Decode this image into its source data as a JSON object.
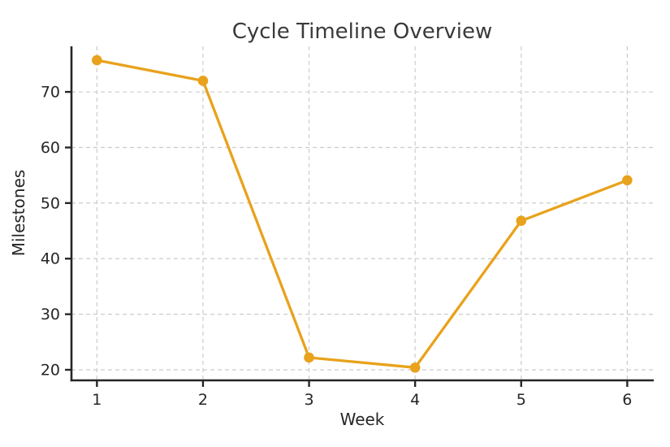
{
  "figure": {
    "background": "#ffffff"
  },
  "chart_data": {
    "type": "line",
    "title": "Cycle Timeline Overview",
    "xlabel": "Week",
    "ylabel": "Milestones",
    "x": [
      1,
      2,
      3,
      4,
      5,
      6
    ],
    "series": [
      {
        "name": "Milestones",
        "values": [
          75.7,
          72.0,
          22.2,
          20.4,
          46.8,
          54.1
        ]
      }
    ],
    "xticks": [
      1,
      2,
      3,
      4,
      5,
      6
    ],
    "yticks": [
      20,
      30,
      40,
      50,
      60,
      70
    ],
    "xlim": [
      0.76,
      6.25
    ],
    "ylim": [
      18.1,
      78.2
    ],
    "grid": true,
    "grid_style": "dashed",
    "legend_position": "none",
    "marker": "circle",
    "line_color": "#E8A21C",
    "grid_color": "#cccccc",
    "spine_color": "#262626",
    "tick_label_color": "#262626",
    "title_color": "#3a3a3a"
  }
}
